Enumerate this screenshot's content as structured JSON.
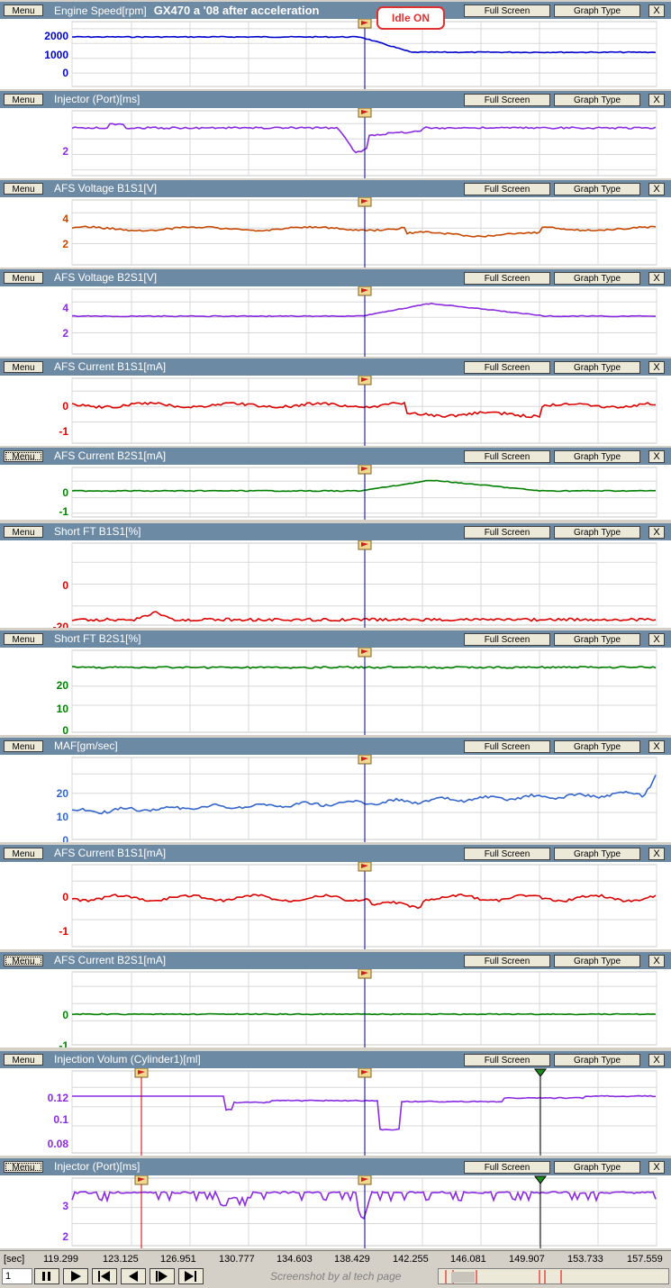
{
  "panels": [
    {
      "title": "Engine Speed[rpm]",
      "subtitle": "GX470 a '08  after acceleration",
      "color": "#0000cc",
      "ticks": [
        "2000",
        "1000",
        "0"
      ],
      "menu_style": "normal"
    },
    {
      "title": "Injector (Port)[ms]",
      "color": "#8a2be2",
      "ticks": [
        "2"
      ],
      "menu_style": "normal"
    },
    {
      "title": "AFS Voltage B1S1[V]",
      "color": "#c84800",
      "ticks": [
        "4",
        "2"
      ],
      "menu_style": "normal"
    },
    {
      "title": "AFS Voltage B2S1[V]",
      "color": "#8a2be2",
      "ticks": [
        "4",
        "2"
      ],
      "menu_style": "normal"
    },
    {
      "title": "AFS Current B1S1[mA]",
      "color": "#dd0000",
      "ticks": [
        "0",
        "-1"
      ],
      "menu_style": "normal"
    },
    {
      "title": "AFS Current B2S1[mA]",
      "color": "#008000",
      "ticks": [
        "0",
        "-1"
      ],
      "menu_style": "dotted"
    },
    {
      "title": "Short FT B1S1[%]",
      "color": "#dd0000",
      "ticks": [
        "0",
        "-20"
      ],
      "menu_style": "normal"
    },
    {
      "title": "Short FT B2S1[%]",
      "color": "#008000",
      "ticks": [
        "20",
        "10",
        "0"
      ],
      "menu_style": "normal"
    },
    {
      "title": "MAF[gm/sec]",
      "color": "#3366cc",
      "ticks": [
        "20",
        "10",
        "0"
      ],
      "menu_style": "normal"
    },
    {
      "title": "AFS Current B1S1[mA]",
      "color": "#dd0000",
      "ticks": [
        "0",
        "-1"
      ],
      "menu_style": "normal"
    },
    {
      "title": "AFS Current B2S1[mA]",
      "color": "#008000",
      "ticks": [
        "0",
        "-1"
      ],
      "menu_style": "dotted"
    },
    {
      "title": "Injection Volum (Cylinder1)[ml]",
      "color": "#8a2be2",
      "ticks": [
        "0.12",
        "0.1",
        "0.08"
      ],
      "menu_style": "normal"
    },
    {
      "title": "Injector (Port)[ms]",
      "color": "#8a2be2",
      "ticks": [
        "3",
        "2"
      ],
      "menu_style": "dotted"
    }
  ],
  "buttons": {
    "menu": "Menu",
    "full_screen": "Full Screen",
    "graph_type": "Graph Type",
    "close": "X"
  },
  "callout": "Idle ON",
  "time_axis": {
    "unit": "[sec]",
    "ticks": [
      "119.299",
      "123.125",
      "126.951",
      "130.777",
      "134.603",
      "138.429",
      "142.255",
      "146.081",
      "149.907",
      "153.733",
      "157.559"
    ]
  },
  "controls": {
    "spin_value": "1",
    "footer": "Screenshot by al tech page"
  },
  "icons": {
    "marker": "flag-marker-icon",
    "play": "play-icon",
    "pause": "pause-icon",
    "first": "skip-first-icon",
    "prev": "step-back-icon",
    "next": "step-forward-icon",
    "last": "skip-last-icon"
  }
}
